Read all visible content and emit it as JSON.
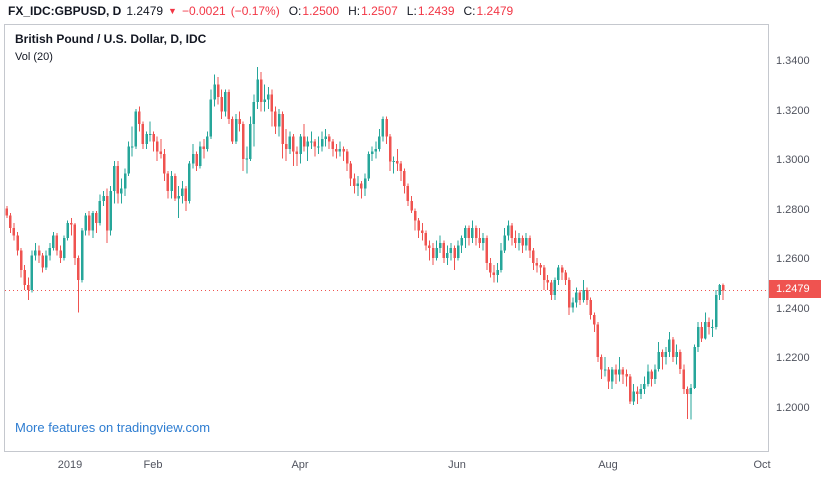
{
  "header": {
    "symbol": "FX_IDC:GBPUSD, D",
    "last_price": "1.2479",
    "direction_icon": "▼",
    "change": "−0.0021",
    "change_pct": "(−0.17%)",
    "open_label": "O:",
    "open": "1.2500",
    "high_label": "H:",
    "high": "1.2507",
    "low_label": "L:",
    "low": "1.2439",
    "close_label": "C:",
    "close": "1.2479"
  },
  "legend": {
    "title": "British Pound / U.S. Dollar, D, IDC",
    "indicator": "Vol (20)"
  },
  "footer": {
    "link": "More features on tradingview.com"
  },
  "price_axis": {
    "last_price_label": "1.2479"
  },
  "colors": {
    "up": "#26a69a",
    "down": "#ef5350",
    "price_line": "#ef5350",
    "badge": "#ef5350",
    "accent_red": "#f23645",
    "link_blue": "#2e7dd1",
    "axis_text": "#50535e",
    "text": "#131722"
  },
  "chart_data": {
    "type": "candlestick",
    "title": "British Pound / U.S. Dollar, D, IDC",
    "symbol": "FX_IDC:GBPUSD",
    "interval": "D",
    "last": {
      "open": 1.25,
      "high": 1.2507,
      "low": 1.2439,
      "close": 1.2479,
      "change": -0.0021,
      "change_pct": -0.17
    },
    "price_line": 1.2479,
    "ylim": [
      1.183,
      1.355
    ],
    "y_ticks": [
      1.34,
      1.32,
      1.3,
      1.28,
      1.26,
      1.24,
      1.22,
      1.2
    ],
    "x_ticks": [
      {
        "label": "2019",
        "slot": 18
      },
      {
        "label": "Feb",
        "slot": 41
      },
      {
        "label": "Apr",
        "slot": 82
      },
      {
        "label": "Jun",
        "slot": 126
      },
      {
        "label": "Aug",
        "slot": 168
      },
      {
        "label": "Oct",
        "slot": 211
      }
    ],
    "total_slots": 213,
    "grid": false,
    "legend_position": "top-left",
    "candles": [
      [
        1.281,
        1.282,
        1.277,
        1.278
      ],
      [
        1.278,
        1.279,
        1.271,
        1.273
      ],
      [
        1.273,
        1.275,
        1.268,
        1.27
      ],
      [
        1.27,
        1.2715,
        1.262,
        1.264
      ],
      [
        1.264,
        1.265,
        1.253,
        1.256
      ],
      [
        1.256,
        1.258,
        1.248,
        1.25
      ],
      [
        1.25,
        1.253,
        1.244,
        1.248
      ],
      [
        1.248,
        1.264,
        1.247,
        1.262
      ],
      [
        1.262,
        1.267,
        1.26,
        1.264
      ],
      [
        1.264,
        1.266,
        1.259,
        1.262
      ],
      [
        1.262,
        1.263,
        1.255,
        1.257
      ],
      [
        1.257,
        1.264,
        1.256,
        1.262
      ],
      [
        1.262,
        1.267,
        1.26,
        1.265
      ],
      [
        1.265,
        1.2715,
        1.264,
        1.27
      ],
      [
        1.27,
        1.271,
        1.262,
        1.264
      ],
      [
        1.264,
        1.266,
        1.259,
        1.261
      ],
      [
        1.261,
        1.27,
        1.26,
        1.269
      ],
      [
        1.269,
        1.276,
        1.268,
        1.275
      ],
      [
        1.275,
        1.277,
        1.27,
        1.2745
      ],
      [
        1.2745,
        1.275,
        1.258,
        1.261
      ],
      [
        1.261,
        1.262,
        1.239,
        1.252
      ],
      [
        1.252,
        1.273,
        1.251,
        1.272
      ],
      [
        1.272,
        1.279,
        1.27,
        1.278
      ],
      [
        1.278,
        1.28,
        1.27,
        1.272
      ],
      [
        1.272,
        1.28,
        1.269,
        1.279
      ],
      [
        1.279,
        1.28,
        1.271,
        1.275
      ],
      [
        1.275,
        1.2865,
        1.274,
        1.284
      ],
      [
        1.284,
        1.288,
        1.282,
        1.286
      ],
      [
        1.286,
        1.289,
        1.267,
        1.272
      ],
      [
        1.272,
        1.29,
        1.27,
        1.288
      ],
      [
        1.288,
        1.3,
        1.283,
        1.298
      ],
      [
        1.298,
        1.3,
        1.283,
        1.287
      ],
      [
        1.287,
        1.293,
        1.283,
        1.289
      ],
      [
        1.289,
        1.297,
        1.286,
        1.295
      ],
      [
        1.295,
        1.308,
        1.294,
        1.306
      ],
      [
        1.306,
        1.314,
        1.302,
        1.306
      ],
      [
        1.306,
        1.321,
        1.305,
        1.32
      ],
      [
        1.32,
        1.322,
        1.312,
        1.315
      ],
      [
        1.315,
        1.316,
        1.305,
        1.307
      ],
      [
        1.307,
        1.312,
        1.305,
        1.311
      ],
      [
        1.311,
        1.316,
        1.308,
        1.311
      ],
      [
        1.311,
        1.312,
        1.304,
        1.308
      ],
      [
        1.308,
        1.31,
        1.3,
        1.304
      ],
      [
        1.304,
        1.309,
        1.301,
        1.303
      ],
      [
        1.303,
        1.305,
        1.292,
        1.295
      ],
      [
        1.295,
        1.296,
        1.285,
        1.288
      ],
      [
        1.288,
        1.296,
        1.285,
        1.294
      ],
      [
        1.294,
        1.295,
        1.284,
        1.285
      ],
      [
        1.285,
        1.29,
        1.277,
        1.286
      ],
      [
        1.286,
        1.292,
        1.283,
        1.289
      ],
      [
        1.289,
        1.29,
        1.28,
        1.284
      ],
      [
        1.284,
        1.3,
        1.283,
        1.299
      ],
      [
        1.299,
        1.307,
        1.297,
        1.303
      ],
      [
        1.303,
        1.304,
        1.296,
        1.298
      ],
      [
        1.298,
        1.308,
        1.297,
        1.306
      ],
      [
        1.306,
        1.309,
        1.301,
        1.305
      ],
      [
        1.305,
        1.312,
        1.304,
        1.31
      ],
      [
        1.31,
        1.329,
        1.309,
        1.325
      ],
      [
        1.325,
        1.335,
        1.322,
        1.331
      ],
      [
        1.331,
        1.334,
        1.323,
        1.326
      ],
      [
        1.326,
        1.329,
        1.317,
        1.32
      ],
      [
        1.32,
        1.329,
        1.318,
        1.328
      ],
      [
        1.328,
        1.329,
        1.315,
        1.317
      ],
      [
        1.317,
        1.318,
        1.307,
        1.308
      ],
      [
        1.308,
        1.319,
        1.307,
        1.317
      ],
      [
        1.317,
        1.32,
        1.312,
        1.315
      ],
      [
        1.315,
        1.316,
        1.296,
        1.301
      ],
      [
        1.301,
        1.306,
        1.295,
        1.301
      ],
      [
        1.301,
        1.318,
        1.3,
        1.315
      ],
      [
        1.315,
        1.327,
        1.306,
        1.324
      ],
      [
        1.324,
        1.338,
        1.321,
        1.333
      ],
      [
        1.333,
        1.336,
        1.32,
        1.324
      ],
      [
        1.324,
        1.331,
        1.32,
        1.325
      ],
      [
        1.325,
        1.33,
        1.321,
        1.327
      ],
      [
        1.327,
        1.329,
        1.314,
        1.32
      ],
      [
        1.32,
        1.322,
        1.311,
        1.314
      ],
      [
        1.314,
        1.321,
        1.31,
        1.319
      ],
      [
        1.319,
        1.32,
        1.301,
        1.307
      ],
      [
        1.307,
        1.313,
        1.3,
        1.305
      ],
      [
        1.305,
        1.312,
        1.303,
        1.31
      ],
      [
        1.31,
        1.311,
        1.298,
        1.304
      ],
      [
        1.304,
        1.306,
        1.298,
        1.303
      ],
      [
        1.303,
        1.311,
        1.299,
        1.31
      ],
      [
        1.31,
        1.315,
        1.304,
        1.306
      ],
      [
        1.306,
        1.31,
        1.3,
        1.308
      ],
      [
        1.308,
        1.312,
        1.305,
        1.308
      ],
      [
        1.308,
        1.309,
        1.302,
        1.306
      ],
      [
        1.306,
        1.31,
        1.303,
        1.306
      ],
      [
        1.306,
        1.312,
        1.304,
        1.309
      ],
      [
        1.309,
        1.313,
        1.306,
        1.31
      ],
      [
        1.31,
        1.311,
        1.305,
        1.308
      ],
      [
        1.308,
        1.309,
        1.302,
        1.305
      ],
      [
        1.305,
        1.307,
        1.301,
        1.304
      ],
      [
        1.304,
        1.308,
        1.302,
        1.305
      ],
      [
        1.305,
        1.306,
        1.3,
        1.304
      ],
      [
        1.304,
        1.305,
        1.296,
        1.299
      ],
      [
        1.299,
        1.3,
        1.29,
        1.293
      ],
      [
        1.293,
        1.295,
        1.287,
        1.29
      ],
      [
        1.29,
        1.294,
        1.286,
        1.291
      ],
      [
        1.291,
        1.292,
        1.285,
        1.289
      ],
      [
        1.289,
        1.295,
        1.286,
        1.293
      ],
      [
        1.293,
        1.304,
        1.292,
        1.303
      ],
      [
        1.303,
        1.306,
        1.3,
        1.304
      ],
      [
        1.304,
        1.308,
        1.301,
        1.305
      ],
      [
        1.305,
        1.313,
        1.304,
        1.31
      ],
      [
        1.31,
        1.318,
        1.308,
        1.317
      ],
      [
        1.317,
        1.318,
        1.307,
        1.31
      ],
      [
        1.31,
        1.311,
        1.296,
        1.3
      ],
      [
        1.3,
        1.302,
        1.295,
        1.3
      ],
      [
        1.3,
        1.305,
        1.296,
        1.299
      ],
      [
        1.299,
        1.3,
        1.292,
        1.296
      ],
      [
        1.296,
        1.297,
        1.287,
        1.29
      ],
      [
        1.29,
        1.291,
        1.282,
        1.284
      ],
      [
        1.284,
        1.286,
        1.279,
        1.28
      ],
      [
        1.28,
        1.281,
        1.272,
        1.276
      ],
      [
        1.276,
        1.277,
        1.269,
        1.272
      ],
      [
        1.272,
        1.275,
        1.268,
        1.271
      ],
      [
        1.271,
        1.272,
        1.264,
        1.266
      ],
      [
        1.266,
        1.268,
        1.26,
        1.265
      ],
      [
        1.265,
        1.267,
        1.258,
        1.261
      ],
      [
        1.261,
        1.268,
        1.26,
        1.265
      ],
      [
        1.265,
        1.27,
        1.263,
        1.267
      ],
      [
        1.267,
        1.268,
        1.259,
        1.261
      ],
      [
        1.261,
        1.266,
        1.258,
        1.263
      ],
      [
        1.263,
        1.267,
        1.26,
        1.265
      ],
      [
        1.265,
        1.266,
        1.256,
        1.261
      ],
      [
        1.261,
        1.268,
        1.26,
        1.266
      ],
      [
        1.266,
        1.27,
        1.263,
        1.269
      ],
      [
        1.269,
        1.274,
        1.265,
        1.273
      ],
      [
        1.273,
        1.274,
        1.266,
        1.269
      ],
      [
        1.269,
        1.276,
        1.267,
        1.273
      ],
      [
        1.273,
        1.274,
        1.266,
        1.269
      ],
      [
        1.269,
        1.273,
        1.265,
        1.267
      ],
      [
        1.267,
        1.271,
        1.264,
        1.269
      ],
      [
        1.269,
        1.27,
        1.256,
        1.259
      ],
      [
        1.259,
        1.261,
        1.253,
        1.255
      ],
      [
        1.255,
        1.258,
        1.251,
        1.254
      ],
      [
        1.254,
        1.259,
        1.251,
        1.256
      ],
      [
        1.256,
        1.267,
        1.255,
        1.264
      ],
      [
        1.264,
        1.273,
        1.263,
        1.27
      ],
      [
        1.27,
        1.276,
        1.268,
        1.274
      ],
      [
        1.274,
        1.275,
        1.266,
        1.269
      ],
      [
        1.269,
        1.272,
        1.265,
        1.267
      ],
      [
        1.267,
        1.271,
        1.264,
        1.269
      ],
      [
        1.269,
        1.27,
        1.263,
        1.266
      ],
      [
        1.266,
        1.271,
        1.264,
        1.269
      ],
      [
        1.269,
        1.27,
        1.261,
        1.264
      ],
      [
        1.264,
        1.265,
        1.256,
        1.259
      ],
      [
        1.259,
        1.261,
        1.255,
        1.258
      ],
      [
        1.258,
        1.259,
        1.254,
        1.257
      ],
      [
        1.257,
        1.258,
        1.248,
        1.252
      ],
      [
        1.252,
        1.254,
        1.248,
        1.251
      ],
      [
        1.251,
        1.252,
        1.244,
        1.246
      ],
      [
        1.246,
        1.253,
        1.244,
        1.252
      ],
      [
        1.252,
        1.258,
        1.25,
        1.257
      ],
      [
        1.257,
        1.258,
        1.252,
        1.255
      ],
      [
        1.255,
        1.256,
        1.25,
        1.252
      ],
      [
        1.252,
        1.253,
        1.238,
        1.241
      ],
      [
        1.241,
        1.245,
        1.239,
        1.243
      ],
      [
        1.243,
        1.249,
        1.241,
        1.247
      ],
      [
        1.247,
        1.248,
        1.242,
        1.244
      ],
      [
        1.244,
        1.252,
        1.243,
        1.248
      ],
      [
        1.248,
        1.249,
        1.242,
        1.244
      ],
      [
        1.244,
        1.245,
        1.236,
        1.238
      ],
      [
        1.238,
        1.239,
        1.231,
        1.234
      ],
      [
        1.234,
        1.235,
        1.219,
        1.221
      ],
      [
        1.221,
        1.222,
        1.212,
        1.216
      ],
      [
        1.216,
        1.221,
        1.213,
        1.216
      ],
      [
        1.216,
        1.217,
        1.208,
        1.211
      ],
      [
        1.211,
        1.217,
        1.208,
        1.216
      ],
      [
        1.216,
        1.218,
        1.21,
        1.214
      ],
      [
        1.214,
        1.221,
        1.211,
        1.216
      ],
      [
        1.216,
        1.217,
        1.21,
        1.214
      ],
      [
        1.214,
        1.216,
        1.209,
        1.213
      ],
      [
        1.213,
        1.214,
        1.202,
        1.203
      ],
      [
        1.203,
        1.21,
        1.2015,
        1.207
      ],
      [
        1.207,
        1.209,
        1.202,
        1.206
      ],
      [
        1.206,
        1.21,
        1.204,
        1.208
      ],
      [
        1.208,
        1.213,
        1.206,
        1.21
      ],
      [
        1.21,
        1.218,
        1.209,
        1.215
      ],
      [
        1.215,
        1.216,
        1.209,
        1.212
      ],
      [
        1.212,
        1.218,
        1.21,
        1.216
      ],
      [
        1.216,
        1.227,
        1.215,
        1.223
      ],
      [
        1.223,
        1.224,
        1.216,
        1.221
      ],
      [
        1.221,
        1.225,
        1.218,
        1.223
      ],
      [
        1.223,
        1.231,
        1.221,
        1.228
      ],
      [
        1.228,
        1.229,
        1.219,
        1.221
      ],
      [
        1.221,
        1.226,
        1.218,
        1.223
      ],
      [
        1.223,
        1.224,
        1.214,
        1.216
      ],
      [
        1.216,
        1.218,
        1.206,
        1.208
      ],
      [
        1.208,
        1.209,
        1.196,
        1.206
      ],
      [
        1.206,
        1.21,
        1.1958,
        1.2085
      ],
      [
        1.2085,
        1.226,
        1.208,
        1.225
      ],
      [
        1.225,
        1.235,
        1.223,
        1.233
      ],
      [
        1.233,
        1.235,
        1.227,
        1.2285
      ],
      [
        1.2285,
        1.239,
        1.228,
        1.235
      ],
      [
        1.235,
        1.237,
        1.23,
        1.233
      ],
      [
        1.233,
        1.236,
        1.229,
        1.233
      ],
      [
        1.233,
        1.248,
        1.232,
        1.246
      ],
      [
        1.246,
        1.2505,
        1.244,
        1.25
      ],
      [
        1.25,
        1.2507,
        1.2439,
        1.2479
      ]
    ]
  }
}
